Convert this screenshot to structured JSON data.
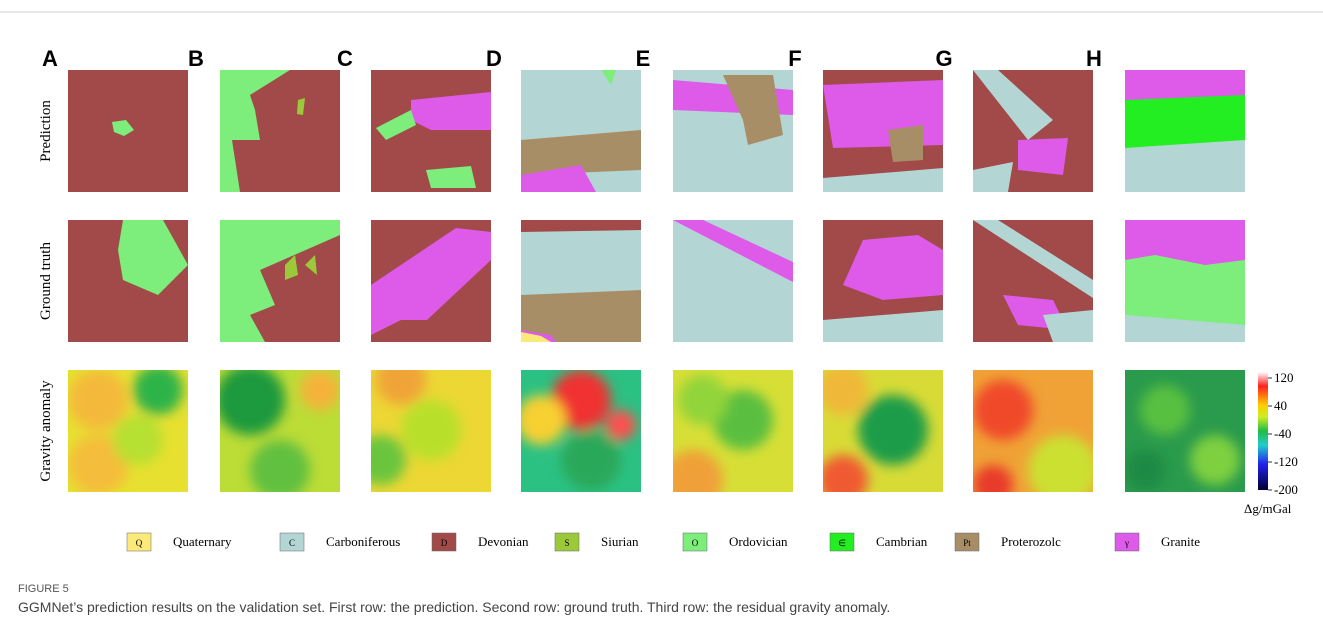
{
  "panel_labels": [
    "A",
    "B",
    "C",
    "D",
    "E",
    "F",
    "G",
    "H"
  ],
  "row_labels": [
    "Prediction",
    "Ground truth",
    "Gravity anomaly"
  ],
  "colorbar": {
    "ticks": [
      120,
      40,
      -40,
      -120,
      -200
    ],
    "unit": "Δg/mGal"
  },
  "legend": [
    {
      "symbol": "Q",
      "name": "Quaternary"
    },
    {
      "symbol": "C",
      "name": "Carboniferous"
    },
    {
      "symbol": "D",
      "name": "Devonian"
    },
    {
      "symbol": "S",
      "name": "Siurian"
    },
    {
      "symbol": "O",
      "name": "Ordovician"
    },
    {
      "symbol": "∈",
      "name": "Cambrian"
    },
    {
      "symbol": "Pt",
      "name": "Proterozolc"
    },
    {
      "symbol": "γ",
      "name": "Granite"
    }
  ],
  "caption": {
    "label": "FIGURE 5",
    "text": "GGMNet’s prediction results on the validation set. First row: the prediction. Second row: ground truth. Third row: the residual gravity anomaly."
  }
}
